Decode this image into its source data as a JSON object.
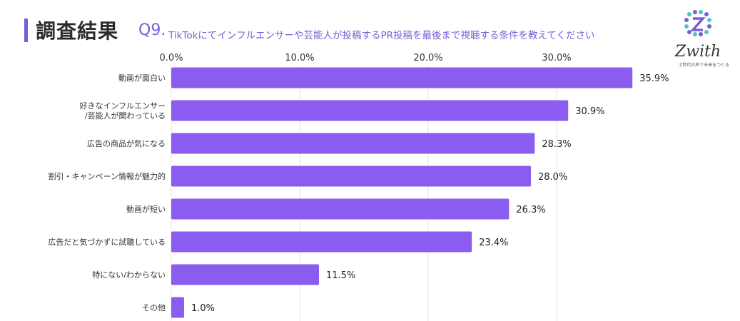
{
  "header": {
    "title": "調査結果",
    "question_number": "Q9.",
    "question_text": "TikTokにてインフルエンサーや芸能人が投稿するPR投稿を最後まで視聴する条件を教えてください"
  },
  "logo": {
    "word": "Zwith",
    "tagline": "Z世代の声で未来をつくる"
  },
  "colors": {
    "bar": "#8a5cf0",
    "accent": "#7b5cd6",
    "grid": "#e6e6e6"
  },
  "chart_data": {
    "type": "bar",
    "orientation": "horizontal",
    "categories": [
      [
        "動画が面白い"
      ],
      [
        "好きなインフルエンサー",
        "/芸能人が関わっている"
      ],
      [
        "広告の商品が気になる"
      ],
      [
        "割引・キャンペーン情報が魅力的"
      ],
      [
        "動画が短い"
      ],
      [
        "広告だと気づかずに試聴している"
      ],
      [
        "特にない/わからない"
      ],
      [
        "その他"
      ]
    ],
    "values": [
      35.9,
      30.9,
      28.3,
      28.0,
      26.3,
      23.4,
      11.5,
      1.0
    ],
    "value_labels": [
      "35.9%",
      "30.9%",
      "28.3%",
      "28.0%",
      "26.3%",
      "23.4%",
      "11.5%",
      "1.0%"
    ],
    "x_ticks": [
      0,
      10,
      20,
      30
    ],
    "x_tick_labels": [
      "0.0%",
      "10.0%",
      "20.0%",
      "30.0%"
    ],
    "xlim": [
      0,
      36
    ],
    "axis_position": "top",
    "grid": true
  }
}
